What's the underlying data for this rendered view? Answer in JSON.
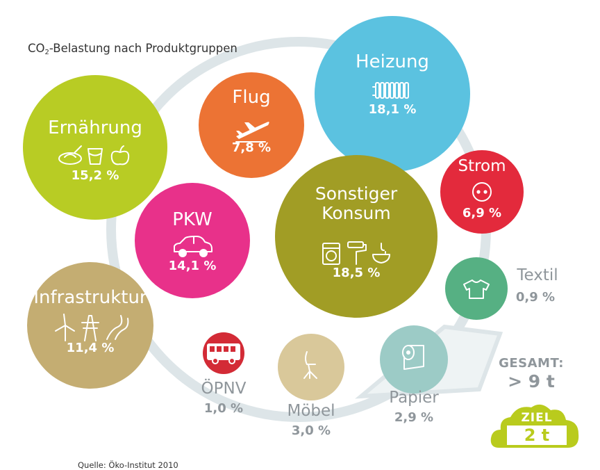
{
  "title": {
    "main": "CO",
    "sub": "2",
    "rest": "-Belastung nach Produktgruppen"
  },
  "source": "Quelle: Öko-Institut 2010",
  "total": {
    "label": "GESAMT:",
    "value": "> 9 t"
  },
  "goal": {
    "label": "ZIEL",
    "value": "2 t"
  },
  "colors": {
    "ring": "#dde5e8",
    "gray_text": "#8f969b",
    "goal_cloud": "#b9cb1d"
  },
  "chart_data": {
    "type": "bubble",
    "title": "CO2-Belastung nach Produktgruppen",
    "unit": "%",
    "categories": [
      {
        "name": "Heizung",
        "value": 18.1,
        "label": "18,1 %",
        "color": "#5bc2e0",
        "icons": [
          "radiator-icon"
        ]
      },
      {
        "name": "Flug",
        "value": 7.8,
        "label": "7,8 %",
        "color": "#ec7334",
        "icons": [
          "airplane-icon"
        ]
      },
      {
        "name": "Ernährung",
        "value": 15.2,
        "label": "15,2 %",
        "color": "#b8cc24",
        "icons": [
          "food-icon",
          "cup-icon",
          "apple-icon"
        ]
      },
      {
        "name": "Strom",
        "value": 6.9,
        "label": "6,9 %",
        "color": "#e32a3c",
        "icons": [
          "socket-icon"
        ]
      },
      {
        "name": "PKW",
        "value": 14.1,
        "label": "14,1 %",
        "color": "#e8318a",
        "icons": [
          "car-icon"
        ]
      },
      {
        "name": "Sonstiger Konsum",
        "value": 18.5,
        "label": "18,5 %",
        "color": "#a19d25",
        "icons": [
          "washing-machine-icon",
          "paint-roller-icon",
          "sink-icon"
        ]
      },
      {
        "name": "Textil",
        "value": 0.9,
        "label": "0,9 %",
        "color": "#56b083",
        "icons": [
          "tshirt-icon"
        ]
      },
      {
        "name": "Infrastruktur",
        "value": 11.4,
        "label": "11,4 %",
        "color": "#c4ad72",
        "icons": [
          "wind-turbine-icon",
          "power-pylon-icon",
          "road-icon"
        ]
      },
      {
        "name": "ÖPNV",
        "value": 1.0,
        "label": "1,0 %",
        "color": "#d32b36",
        "icons": [
          "bus-icon"
        ]
      },
      {
        "name": "Möbel",
        "value": 3.0,
        "label": "3,0 %",
        "color": "#d9c89a",
        "icons": [
          "chair-icon"
        ]
      },
      {
        "name": "Papier",
        "value": 2.9,
        "label": "2,9 %",
        "color": "#9ccbc6",
        "icons": [
          "paper-roll-icon"
        ]
      }
    ]
  }
}
